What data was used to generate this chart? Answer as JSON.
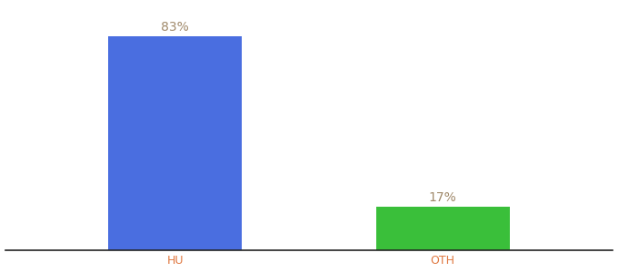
{
  "categories": [
    "HU",
    "OTH"
  ],
  "values": [
    83,
    17
  ],
  "bar_colors": [
    "#4a6ee0",
    "#3abf3a"
  ],
  "labels": [
    "83%",
    "17%"
  ],
  "ylim": [
    0,
    95
  ],
  "background_color": "#ffffff",
  "label_color": "#a0896a",
  "label_fontsize": 10,
  "tick_fontsize": 9,
  "tick_color": "#e07840",
  "bar_positions": [
    0.28,
    0.72
  ],
  "bar_width": 0.22
}
